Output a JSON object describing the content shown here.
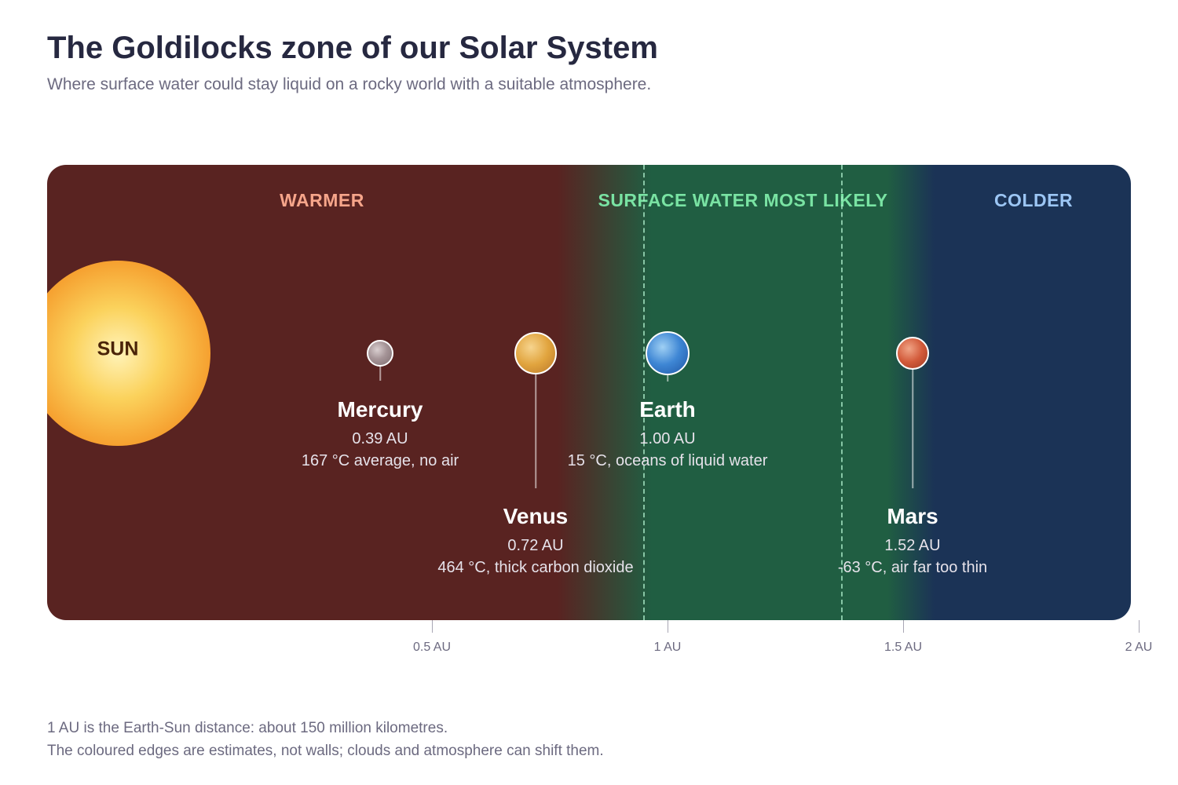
{
  "title": "The Goldilocks zone of our Solar System",
  "subtitle": "Where surface water could stay liquid on a rocky world with a suitable atmosphere.",
  "zones": {
    "warmer": "WARMER",
    "habitable": "SURFACE WATER MOST LIKELY",
    "colder": "COLDER"
  },
  "colors": {
    "warmer_bg": "#592321",
    "habitable_bg": "#205e42",
    "colder_bg": "#1b3356",
    "warmer_text": "#f6a58a",
    "habitable_text": "#79e3a3",
    "colder_text": "#9cc6f4"
  },
  "sun": {
    "label": "SUN"
  },
  "planets": [
    {
      "name": "Mercury",
      "distance": "0.39 AU",
      "note": "167 °C average, no air",
      "au": 0.39,
      "color": "#9e8e90"
    },
    {
      "name": "Venus",
      "distance": "0.72 AU",
      "note": "464 °C, thick carbon dioxide",
      "au": 0.72,
      "color": "#e3a43c"
    },
    {
      "name": "Earth",
      "distance": "1.00 AU",
      "note": "15 °C, oceans of liquid water",
      "au": 1.0,
      "color": "#3a80d0"
    },
    {
      "name": "Mars",
      "distance": "1.52 AU",
      "note": "-63 °C, air far too thin",
      "au": 1.52,
      "color": "#d0553a"
    }
  ],
  "axis": {
    "ticks": [
      {
        "value": 0.5,
        "label": "0.5 AU"
      },
      {
        "value": 1.0,
        "label": "1 AU"
      },
      {
        "value": 1.5,
        "label": "1.5 AU"
      },
      {
        "value": 2.0,
        "label": "2 AU"
      }
    ]
  },
  "footnotes": [
    "1 AU is the Earth-Sun distance: about 150 million kilometres.",
    "The coloured edges are estimates, not walls; clouds and atmosphere can shift them."
  ]
}
